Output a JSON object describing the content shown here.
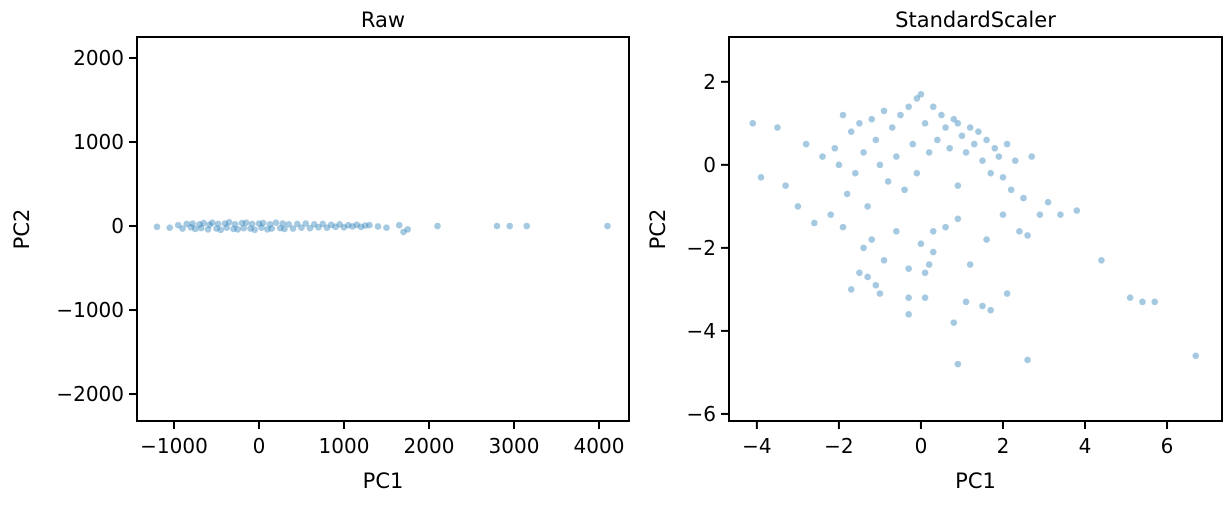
{
  "chart_data": [
    {
      "type": "scatter",
      "title": "Raw",
      "xlabel": "PC1",
      "ylabel": "PC2",
      "color": "#1f77b4",
      "opacity": 0.4,
      "xlim": [
        -1435,
        4353
      ],
      "ylim": [
        -2321,
        2250
      ],
      "xticks": [
        {
          "value": -1000,
          "label": "−1000"
        },
        0,
        1000,
        2000,
        3000,
        4000
      ],
      "yticks": [
        {
          "value": -2000,
          "label": "−2000"
        },
        {
          "value": -1000,
          "label": "−1000"
        },
        0,
        1000,
        2000
      ],
      "x": [
        -1200,
        -1050,
        -950,
        -900,
        -850,
        -800,
        -780,
        -750,
        -700,
        -680,
        -650,
        -600,
        -580,
        -550,
        -500,
        -480,
        -450,
        -400,
        -380,
        -350,
        -300,
        -280,
        -250,
        -200,
        -180,
        -150,
        -100,
        -80,
        -50,
        0,
        30,
        50,
        100,
        130,
        150,
        200,
        250,
        280,
        300,
        350,
        400,
        450,
        500,
        550,
        600,
        650,
        700,
        750,
        800,
        850,
        900,
        950,
        1000,
        1050,
        1100,
        1150,
        1200,
        1250,
        1300,
        1400,
        1500,
        1650,
        1700,
        1750,
        2100,
        2800,
        2950,
        3150,
        4100
      ],
      "y": [
        -10,
        -20,
        10,
        -30,
        25,
        -15,
        30,
        -35,
        20,
        -25,
        35,
        -40,
        15,
        40,
        -30,
        25,
        -45,
        30,
        -20,
        45,
        -35,
        20,
        -40,
        35,
        -25,
        40,
        -30,
        25,
        -45,
        30,
        -20,
        35,
        -40,
        20,
        -30,
        40,
        -25,
        30,
        -35,
        20,
        -30,
        25,
        -20,
        30,
        -25,
        20,
        -15,
        25,
        -20,
        15,
        -10,
        20,
        -15,
        10,
        -5,
        15,
        -10,
        5,
        10,
        -5,
        -20,
        10,
        -70,
        -40,
        0,
        0,
        0,
        0,
        0
      ]
    },
    {
      "type": "scatter",
      "title": "StandardScaler",
      "xlabel": "PC1",
      "ylabel": "PC2",
      "color": "#1f77b4",
      "opacity": 0.4,
      "xlim": [
        -4.68,
        7.34
      ],
      "ylim": [
        -6.17,
        3.08
      ],
      "xticks": [
        {
          "value": -4,
          "label": "−4"
        },
        {
          "value": -2,
          "label": "−2"
        },
        0,
        2,
        4,
        6
      ],
      "yticks": [
        {
          "value": -6,
          "label": "−6"
        },
        {
          "value": -4,
          "label": "−4"
        },
        {
          "value": -2,
          "label": "−2"
        },
        0,
        2
      ],
      "x": [
        -4.1,
        -3.9,
        -3.5,
        -3.3,
        -3.0,
        -2.8,
        -2.6,
        -2.4,
        -2.2,
        -2.1,
        -2.0,
        -1.9,
        -1.8,
        -1.7,
        -1.6,
        -1.5,
        -1.4,
        -1.3,
        -1.2,
        -1.1,
        -1.0,
        -0.9,
        -0.8,
        -0.7,
        -0.6,
        -0.5,
        -0.4,
        -0.3,
        -0.2,
        -0.1,
        0.0,
        0.1,
        0.2,
        0.3,
        0.4,
        0.5,
        0.6,
        0.7,
        0.8,
        0.9,
        1.0,
        1.1,
        1.2,
        1.3,
        1.4,
        1.5,
        1.6,
        1.7,
        1.8,
        1.9,
        2.0,
        2.1,
        2.2,
        2.3,
        2.5,
        2.7,
        2.9,
        3.1,
        3.4,
        3.8,
        -1.9,
        -1.5,
        -1.2,
        -0.9,
        -0.6,
        -0.3,
        0.0,
        0.3,
        0.6,
        0.9,
        1.2,
        1.6,
        2.0,
        2.4,
        -1.7,
        -1.3,
        -1.0,
        -0.3,
        0.1,
        0.2,
        0.8,
        1.1,
        1.5,
        1.7,
        2.1,
        2.6,
        -1.4,
        -1.1,
        -0.3,
        0.1,
        0.9,
        2.6,
        4.4,
        5.1,
        5.4,
        5.7,
        6.7,
        0.9,
        0.3,
        -0.1
      ],
      "y": [
        1.0,
        -0.3,
        0.9,
        -0.5,
        -1.0,
        0.5,
        -1.4,
        0.2,
        -1.2,
        0.4,
        0.0,
        1.2,
        -0.7,
        0.8,
        -0.2,
        1.0,
        0.3,
        -1.0,
        1.1,
        0.6,
        0.0,
        1.3,
        -0.4,
        0.9,
        0.2,
        1.2,
        -0.6,
        1.4,
        0.5,
        1.6,
        1.7,
        1.0,
        0.3,
        1.4,
        0.6,
        1.2,
        0.9,
        0.4,
        1.1,
        1.0,
        0.7,
        0.3,
        0.9,
        0.5,
        0.8,
        0.1,
        0.6,
        -0.2,
        0.4,
        0.2,
        -0.3,
        0.5,
        -0.6,
        0.1,
        -0.8,
        0.2,
        -1.2,
        -0.9,
        -1.2,
        -1.1,
        -1.5,
        -2.6,
        -1.8,
        -2.3,
        -1.6,
        -2.5,
        -1.9,
        -2.1,
        -1.5,
        -1.3,
        -2.4,
        -1.8,
        -1.2,
        -1.6,
        -3.0,
        -2.7,
        -3.1,
        -3.2,
        -2.6,
        -2.4,
        -3.8,
        -3.3,
        -3.4,
        -3.5,
        -3.1,
        -1.7,
        -2.0,
        -2.9,
        -3.6,
        -3.2,
        -4.8,
        -4.7,
        -2.3,
        -3.2,
        -3.3,
        -3.3,
        -4.6,
        -0.5,
        -1.6,
        -0.2
      ]
    }
  ]
}
